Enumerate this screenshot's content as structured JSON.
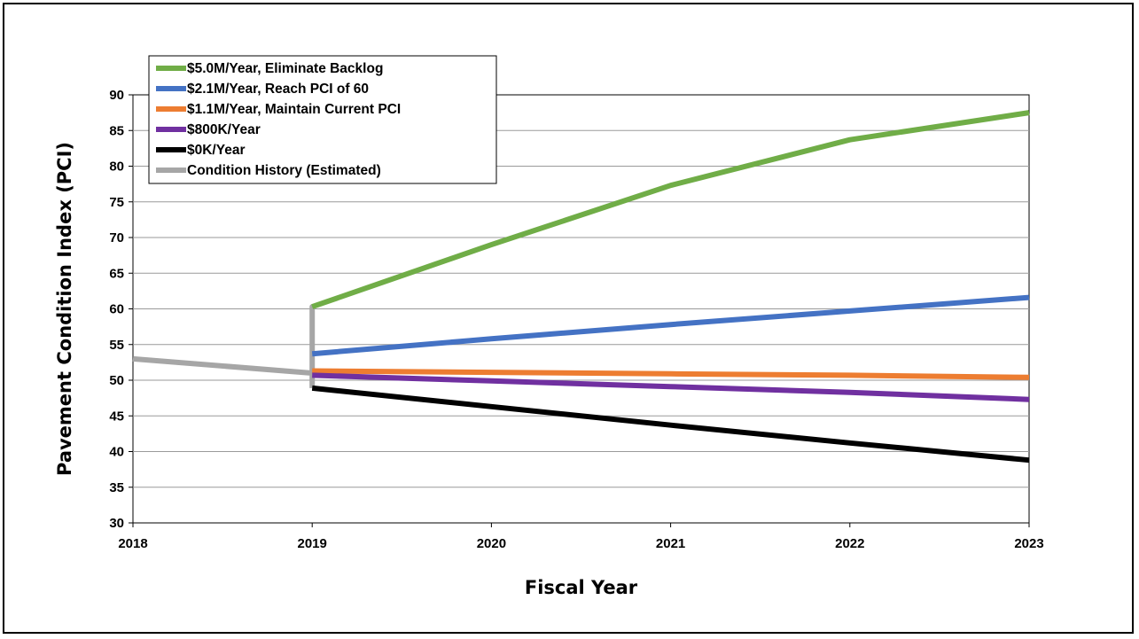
{
  "chart_data": {
    "type": "line",
    "title": "",
    "xlabel": "Fiscal Year",
    "ylabel": "Pavement Condition Index (PCI)",
    "xlim": [
      2018,
      2023
    ],
    "ylim": [
      30,
      90
    ],
    "x_ticks": [
      "2018",
      "2019",
      "2020",
      "2021",
      "2022",
      "2023"
    ],
    "y_ticks": [
      "30",
      "35",
      "40",
      "45",
      "50",
      "55",
      "60",
      "65",
      "70",
      "75",
      "80",
      "85",
      "90"
    ],
    "grid": "horizontal",
    "legend_position": "top-left",
    "series": [
      {
        "name": "$5.0M/Year, Eliminate Backlog",
        "color": "#70ad47",
        "points": [
          [
            2019,
            60.3
          ],
          [
            2020,
            69.0
          ],
          [
            2021,
            77.3
          ],
          [
            2022,
            83.7
          ],
          [
            2023,
            87.5
          ]
        ]
      },
      {
        "name": "$2.1M/Year, Reach PCI of 60",
        "color": "#4472c4",
        "points": [
          [
            2019,
            53.7
          ],
          [
            2020,
            55.8
          ],
          [
            2021,
            57.8
          ],
          [
            2022,
            59.7
          ],
          [
            2023,
            61.6
          ]
        ]
      },
      {
        "name": "$1.1M/Year, Maintain Current PCI",
        "color": "#ed7d31",
        "points": [
          [
            2019,
            51.3
          ],
          [
            2020,
            51.1
          ],
          [
            2021,
            50.9
          ],
          [
            2022,
            50.7
          ],
          [
            2023,
            50.4
          ]
        ]
      },
      {
        "name": "$800K/Year",
        "color": "#7030a0",
        "points": [
          [
            2019,
            50.7
          ],
          [
            2020,
            49.9
          ],
          [
            2021,
            49.1
          ],
          [
            2022,
            48.3
          ],
          [
            2023,
            47.3
          ]
        ]
      },
      {
        "name": "$0K/Year",
        "color": "#000000",
        "points": [
          [
            2019,
            48.9
          ],
          [
            2020,
            46.3
          ],
          [
            2021,
            43.7
          ],
          [
            2022,
            41.2
          ],
          [
            2023,
            38.8
          ]
        ]
      },
      {
        "name": "Condition History (Estimated)",
        "color": "#a6a6a6",
        "points": [
          [
            2018,
            53.0
          ],
          [
            2019,
            51.0
          ],
          [
            2019,
            60.3
          ],
          [
            2019,
            48.9
          ]
        ]
      }
    ]
  }
}
